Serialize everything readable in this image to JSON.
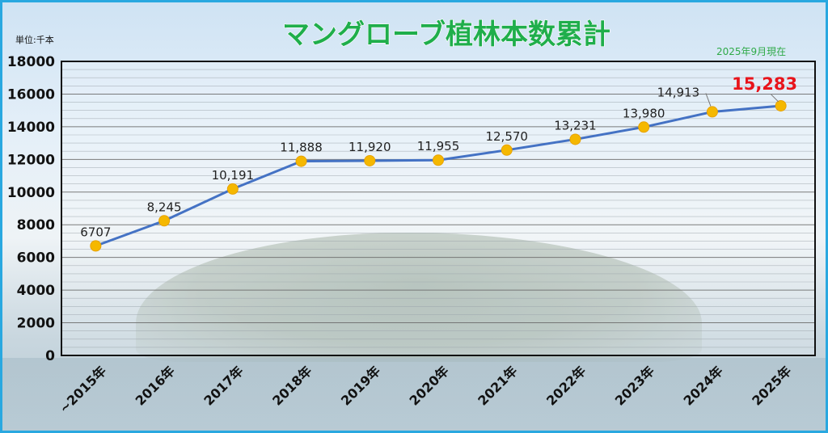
{
  "unit_label": "単位:千本",
  "date_label": "2025年9月現在",
  "colors": {
    "title_fill": "#1fae4b",
    "line": "#4472c4",
    "marker": "#f5b800",
    "highlight_label": "#e8141b",
    "frame": "#29a8e0"
  },
  "chart_data": {
    "type": "line",
    "title": "マングローブ植林本数累計",
    "xlabel": "",
    "ylabel": "",
    "categories": [
      "~2015年",
      "2016年",
      "2017年",
      "2018年",
      "2019年",
      "2020年",
      "2021年",
      "2022年",
      "2023年",
      "2024年",
      "2025年"
    ],
    "values": [
      6707,
      8245,
      10191,
      11888,
      11920,
      11955,
      12570,
      13231,
      13980,
      14913,
      15283
    ],
    "value_labels": [
      "6707",
      "8,245",
      "10,191",
      "11,888",
      "11,920",
      "11,955",
      "12,570",
      "13,231",
      "13,980",
      "14,913",
      "15,283"
    ],
    "ylim": [
      0,
      18000
    ],
    "yticks": [
      "0",
      "2000",
      "4000",
      "6000",
      "8000",
      "10000",
      "12000",
      "14000",
      "16000",
      "18000"
    ],
    "grid": true,
    "legend": "none"
  }
}
